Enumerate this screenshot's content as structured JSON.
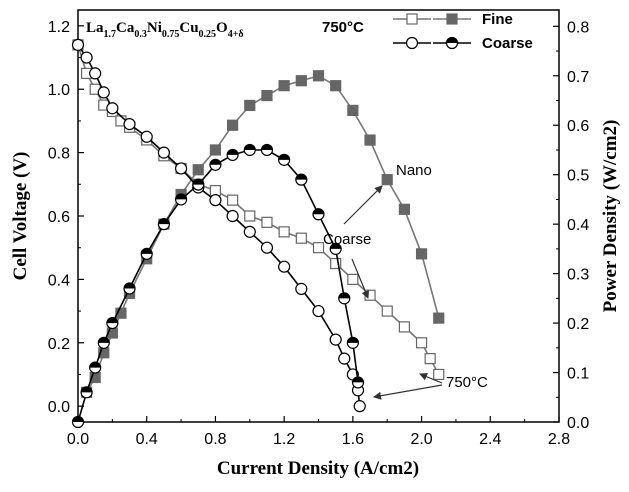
{
  "chart_data": {
    "type": "line",
    "formula": {
      "base": "La",
      "s1": "1.7",
      "b2": "Ca",
      "s2": "0.3",
      "b3": "Ni",
      "s3": "0.75",
      "b4": "Cu",
      "s4": "0.25",
      "b5": "O",
      "s5": "4+δ"
    },
    "temperature": "750°C",
    "xlabel": "Current Density (A/cm2)",
    "ylabel_left": "Cell Voltage (V)",
    "ylabel_right": "Power Density (W/cm2)",
    "xlim": [
      0,
      2.8
    ],
    "ylim_left": [
      -0.05,
      1.25
    ],
    "ylim_right": [
      0,
      0.833
    ],
    "x_ticks": [
      "0.0",
      "0.4",
      "0.8",
      "1.2",
      "1.6",
      "2.0",
      "2.4",
      "2.8"
    ],
    "y_left_ticks": [
      "0.0",
      "0.2",
      "0.4",
      "0.6",
      "0.8",
      "1.0",
      "1.2"
    ],
    "y_right_ticks": [
      "0.0",
      "0.1",
      "0.2",
      "0.3",
      "0.4",
      "0.5",
      "0.6",
      "0.7",
      "0.8"
    ],
    "legend": [
      {
        "name": "Fine",
        "open_marker": "square",
        "filled_marker": "square"
      },
      {
        "name": "Coarse",
        "open_marker": "circle",
        "filled_marker": "half-circle"
      }
    ],
    "annotations": [
      {
        "text": "Nano",
        "target": "fine-power"
      },
      {
        "text": "Coarse",
        "target": "coarse-power"
      },
      {
        "text": "750°C",
        "target": "voltage-curves"
      }
    ],
    "series": [
      {
        "name": "Fine",
        "kind": "voltage",
        "axis": "left",
        "marker": "open-square",
        "x": [
          0.0,
          0.05,
          0.1,
          0.15,
          0.2,
          0.25,
          0.3,
          0.4,
          0.5,
          0.6,
          0.7,
          0.8,
          0.9,
          1.0,
          1.1,
          1.2,
          1.3,
          1.4,
          1.5,
          1.6,
          1.7,
          1.8,
          1.9,
          2.0,
          2.05,
          2.1
        ],
        "values": [
          1.14,
          1.05,
          1.0,
          0.95,
          0.93,
          0.9,
          0.88,
          0.84,
          0.79,
          0.75,
          0.7,
          0.68,
          0.65,
          0.6,
          0.58,
          0.55,
          0.53,
          0.5,
          0.45,
          0.4,
          0.35,
          0.3,
          0.25,
          0.2,
          0.15,
          0.1
        ]
      },
      {
        "name": "Fine",
        "kind": "power",
        "axis": "right",
        "marker": "filled-square",
        "x": [
          0.05,
          0.1,
          0.15,
          0.2,
          0.25,
          0.3,
          0.4,
          0.5,
          0.6,
          0.7,
          0.8,
          0.9,
          1.0,
          1.1,
          1.2,
          1.3,
          1.4,
          1.5,
          1.6,
          1.7,
          1.8,
          1.9,
          2.0,
          2.1
        ],
        "values": [
          0.06,
          0.09,
          0.14,
          0.18,
          0.22,
          0.26,
          0.33,
          0.4,
          0.46,
          0.51,
          0.55,
          0.6,
          0.64,
          0.66,
          0.68,
          0.69,
          0.7,
          0.68,
          0.63,
          0.57,
          0.49,
          0.43,
          0.34,
          0.21
        ]
      },
      {
        "name": "Coarse",
        "kind": "voltage",
        "axis": "left",
        "marker": "open-circle",
        "x": [
          0.0,
          0.05,
          0.1,
          0.15,
          0.2,
          0.3,
          0.4,
          0.5,
          0.6,
          0.7,
          0.8,
          0.9,
          1.0,
          1.1,
          1.2,
          1.3,
          1.4,
          1.5,
          1.55,
          1.6,
          1.63,
          1.64
        ],
        "values": [
          1.14,
          1.1,
          1.05,
          0.99,
          0.94,
          0.89,
          0.85,
          0.8,
          0.75,
          0.69,
          0.65,
          0.6,
          0.55,
          0.5,
          0.44,
          0.37,
          0.3,
          0.21,
          0.15,
          0.1,
          0.05,
          0.0
        ]
      },
      {
        "name": "Coarse",
        "kind": "power",
        "axis": "right",
        "marker": "half-circle",
        "x": [
          0.0,
          0.05,
          0.1,
          0.15,
          0.2,
          0.3,
          0.4,
          0.5,
          0.6,
          0.7,
          0.8,
          0.9,
          1.0,
          1.1,
          1.2,
          1.3,
          1.4,
          1.5,
          1.55,
          1.6,
          1.63
        ],
        "values": [
          0.0,
          0.06,
          0.11,
          0.16,
          0.2,
          0.27,
          0.34,
          0.4,
          0.45,
          0.48,
          0.52,
          0.54,
          0.55,
          0.55,
          0.53,
          0.49,
          0.42,
          0.35,
          0.25,
          0.16,
          0.08
        ]
      }
    ]
  }
}
